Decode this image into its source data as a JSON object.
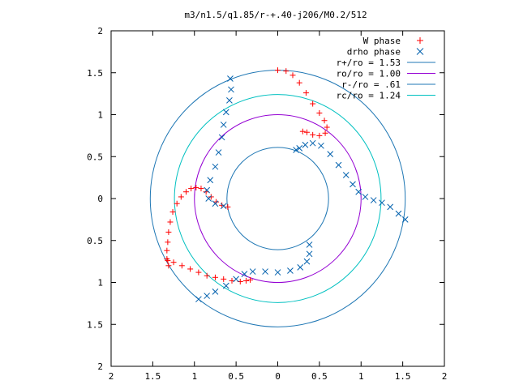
{
  "chart_data": {
    "type": "scatter",
    "title": "m3/n1.5/q1.85/r-+.40-j206/M0.2/512",
    "xlabel": "",
    "ylabel": "",
    "xlim": [
      -2,
      2
    ],
    "ylim": [
      -2,
      2
    ],
    "x_ticks": [
      "2",
      "1.5",
      "1",
      "0.5",
      "0",
      "0.5",
      "1",
      "1.5",
      "2"
    ],
    "y_ticks": [
      "2",
      "1.5",
      "1",
      "0.5",
      "0",
      "0.5",
      "1",
      "1.5",
      "2"
    ],
    "x_tick_values": [
      -2,
      -1.5,
      -1,
      -0.5,
      0,
      0.5,
      1,
      1.5,
      2
    ],
    "y_tick_values": [
      2,
      1.5,
      1,
      0.5,
      0,
      -0.5,
      -1,
      -1.5,
      -2
    ],
    "grid": false,
    "legend_position": "top-right",
    "series": [
      {
        "name": "W phase",
        "kind": "points",
        "marker": "plus",
        "color": "#ff0000",
        "points": [
          [
            0.0,
            1.53
          ],
          [
            0.1,
            1.52
          ],
          [
            0.18,
            1.47
          ],
          [
            0.26,
            1.38
          ],
          [
            0.34,
            1.26
          ],
          [
            0.42,
            1.13
          ],
          [
            0.5,
            1.02
          ],
          [
            0.56,
            0.93
          ],
          [
            0.59,
            0.85
          ],
          [
            0.57,
            0.78
          ],
          [
            0.5,
            0.75
          ],
          [
            0.42,
            0.76
          ],
          [
            0.35,
            0.79
          ],
          [
            0.3,
            0.8
          ],
          [
            -0.33,
            -0.97
          ],
          [
            -0.38,
            -0.98
          ],
          [
            -0.45,
            -0.99
          ],
          [
            -0.55,
            -0.98
          ],
          [
            -0.65,
            -0.96
          ],
          [
            -0.75,
            -0.94
          ],
          [
            -0.85,
            -0.92
          ],
          [
            -0.95,
            -0.88
          ],
          [
            -1.05,
            -0.84
          ],
          [
            -1.15,
            -0.8
          ],
          [
            -1.25,
            -0.76
          ],
          [
            -1.32,
            -0.74
          ],
          [
            -0.6,
            -0.1
          ],
          [
            -0.67,
            -0.08
          ],
          [
            -0.74,
            -0.04
          ],
          [
            -0.8,
            0.02
          ],
          [
            -0.86,
            0.08
          ],
          [
            -0.92,
            0.12
          ],
          [
            -0.98,
            0.13
          ],
          [
            -1.04,
            0.12
          ],
          [
            -1.1,
            0.08
          ],
          [
            -1.16,
            0.02
          ],
          [
            -1.21,
            -0.06
          ],
          [
            -1.26,
            -0.16
          ],
          [
            -1.29,
            -0.28
          ],
          [
            -1.31,
            -0.4
          ],
          [
            -1.32,
            -0.52
          ],
          [
            -1.33,
            -0.62
          ],
          [
            -1.33,
            -0.72
          ],
          [
            -1.31,
            -0.8
          ]
        ]
      },
      {
        "name": "drho phase",
        "kind": "points",
        "marker": "cross",
        "color": "#0060ad",
        "points": [
          [
            1.53,
            -0.25
          ],
          [
            1.45,
            -0.18
          ],
          [
            1.35,
            -0.1
          ],
          [
            1.25,
            -0.05
          ],
          [
            1.15,
            -0.02
          ],
          [
            1.05,
            0.02
          ],
          [
            0.97,
            0.08
          ],
          [
            0.9,
            0.17
          ],
          [
            0.82,
            0.28
          ],
          [
            0.73,
            0.4
          ],
          [
            0.63,
            0.53
          ],
          [
            0.52,
            0.63
          ],
          [
            0.42,
            0.66
          ],
          [
            0.33,
            0.64
          ],
          [
            0.26,
            0.6
          ],
          [
            0.22,
            0.58
          ],
          [
            -0.57,
            1.43
          ],
          [
            -0.56,
            1.3
          ],
          [
            -0.58,
            1.17
          ],
          [
            -0.62,
            1.03
          ],
          [
            -0.65,
            0.88
          ],
          [
            -0.67,
            0.73
          ],
          [
            -0.71,
            0.55
          ],
          [
            -0.75,
            0.38
          ],
          [
            -0.81,
            0.22
          ],
          [
            -0.85,
            0.1
          ],
          [
            -0.83,
            0.0
          ],
          [
            -0.75,
            -0.06
          ],
          [
            -0.65,
            -0.09
          ],
          [
            -0.95,
            -1.2
          ],
          [
            -0.85,
            -1.16
          ],
          [
            -0.75,
            -1.11
          ],
          [
            -0.62,
            -1.04
          ],
          [
            -0.5,
            -0.96
          ],
          [
            -0.4,
            -0.9
          ],
          [
            -0.3,
            -0.87
          ],
          [
            -0.15,
            -0.87
          ],
          [
            0.0,
            -0.88
          ],
          [
            0.15,
            -0.86
          ],
          [
            0.27,
            -0.82
          ],
          [
            0.35,
            -0.75
          ],
          [
            0.38,
            -0.66
          ],
          [
            0.38,
            -0.55
          ]
        ]
      },
      {
        "name": "r+/ro = 1.53",
        "kind": "circle",
        "radius": 1.53,
        "color": "#1f77b4"
      },
      {
        "name": "ro/ro = 1.00",
        "kind": "circle",
        "radius": 1.0,
        "color": "#9400d3"
      },
      {
        "name": "r-/ro = .61",
        "kind": "circle",
        "radius": 0.61,
        "color": "#1f77b4"
      },
      {
        "name": "rc/ro = 1.24",
        "kind": "circle",
        "radius": 1.24,
        "color": "#00c0c0"
      }
    ]
  }
}
